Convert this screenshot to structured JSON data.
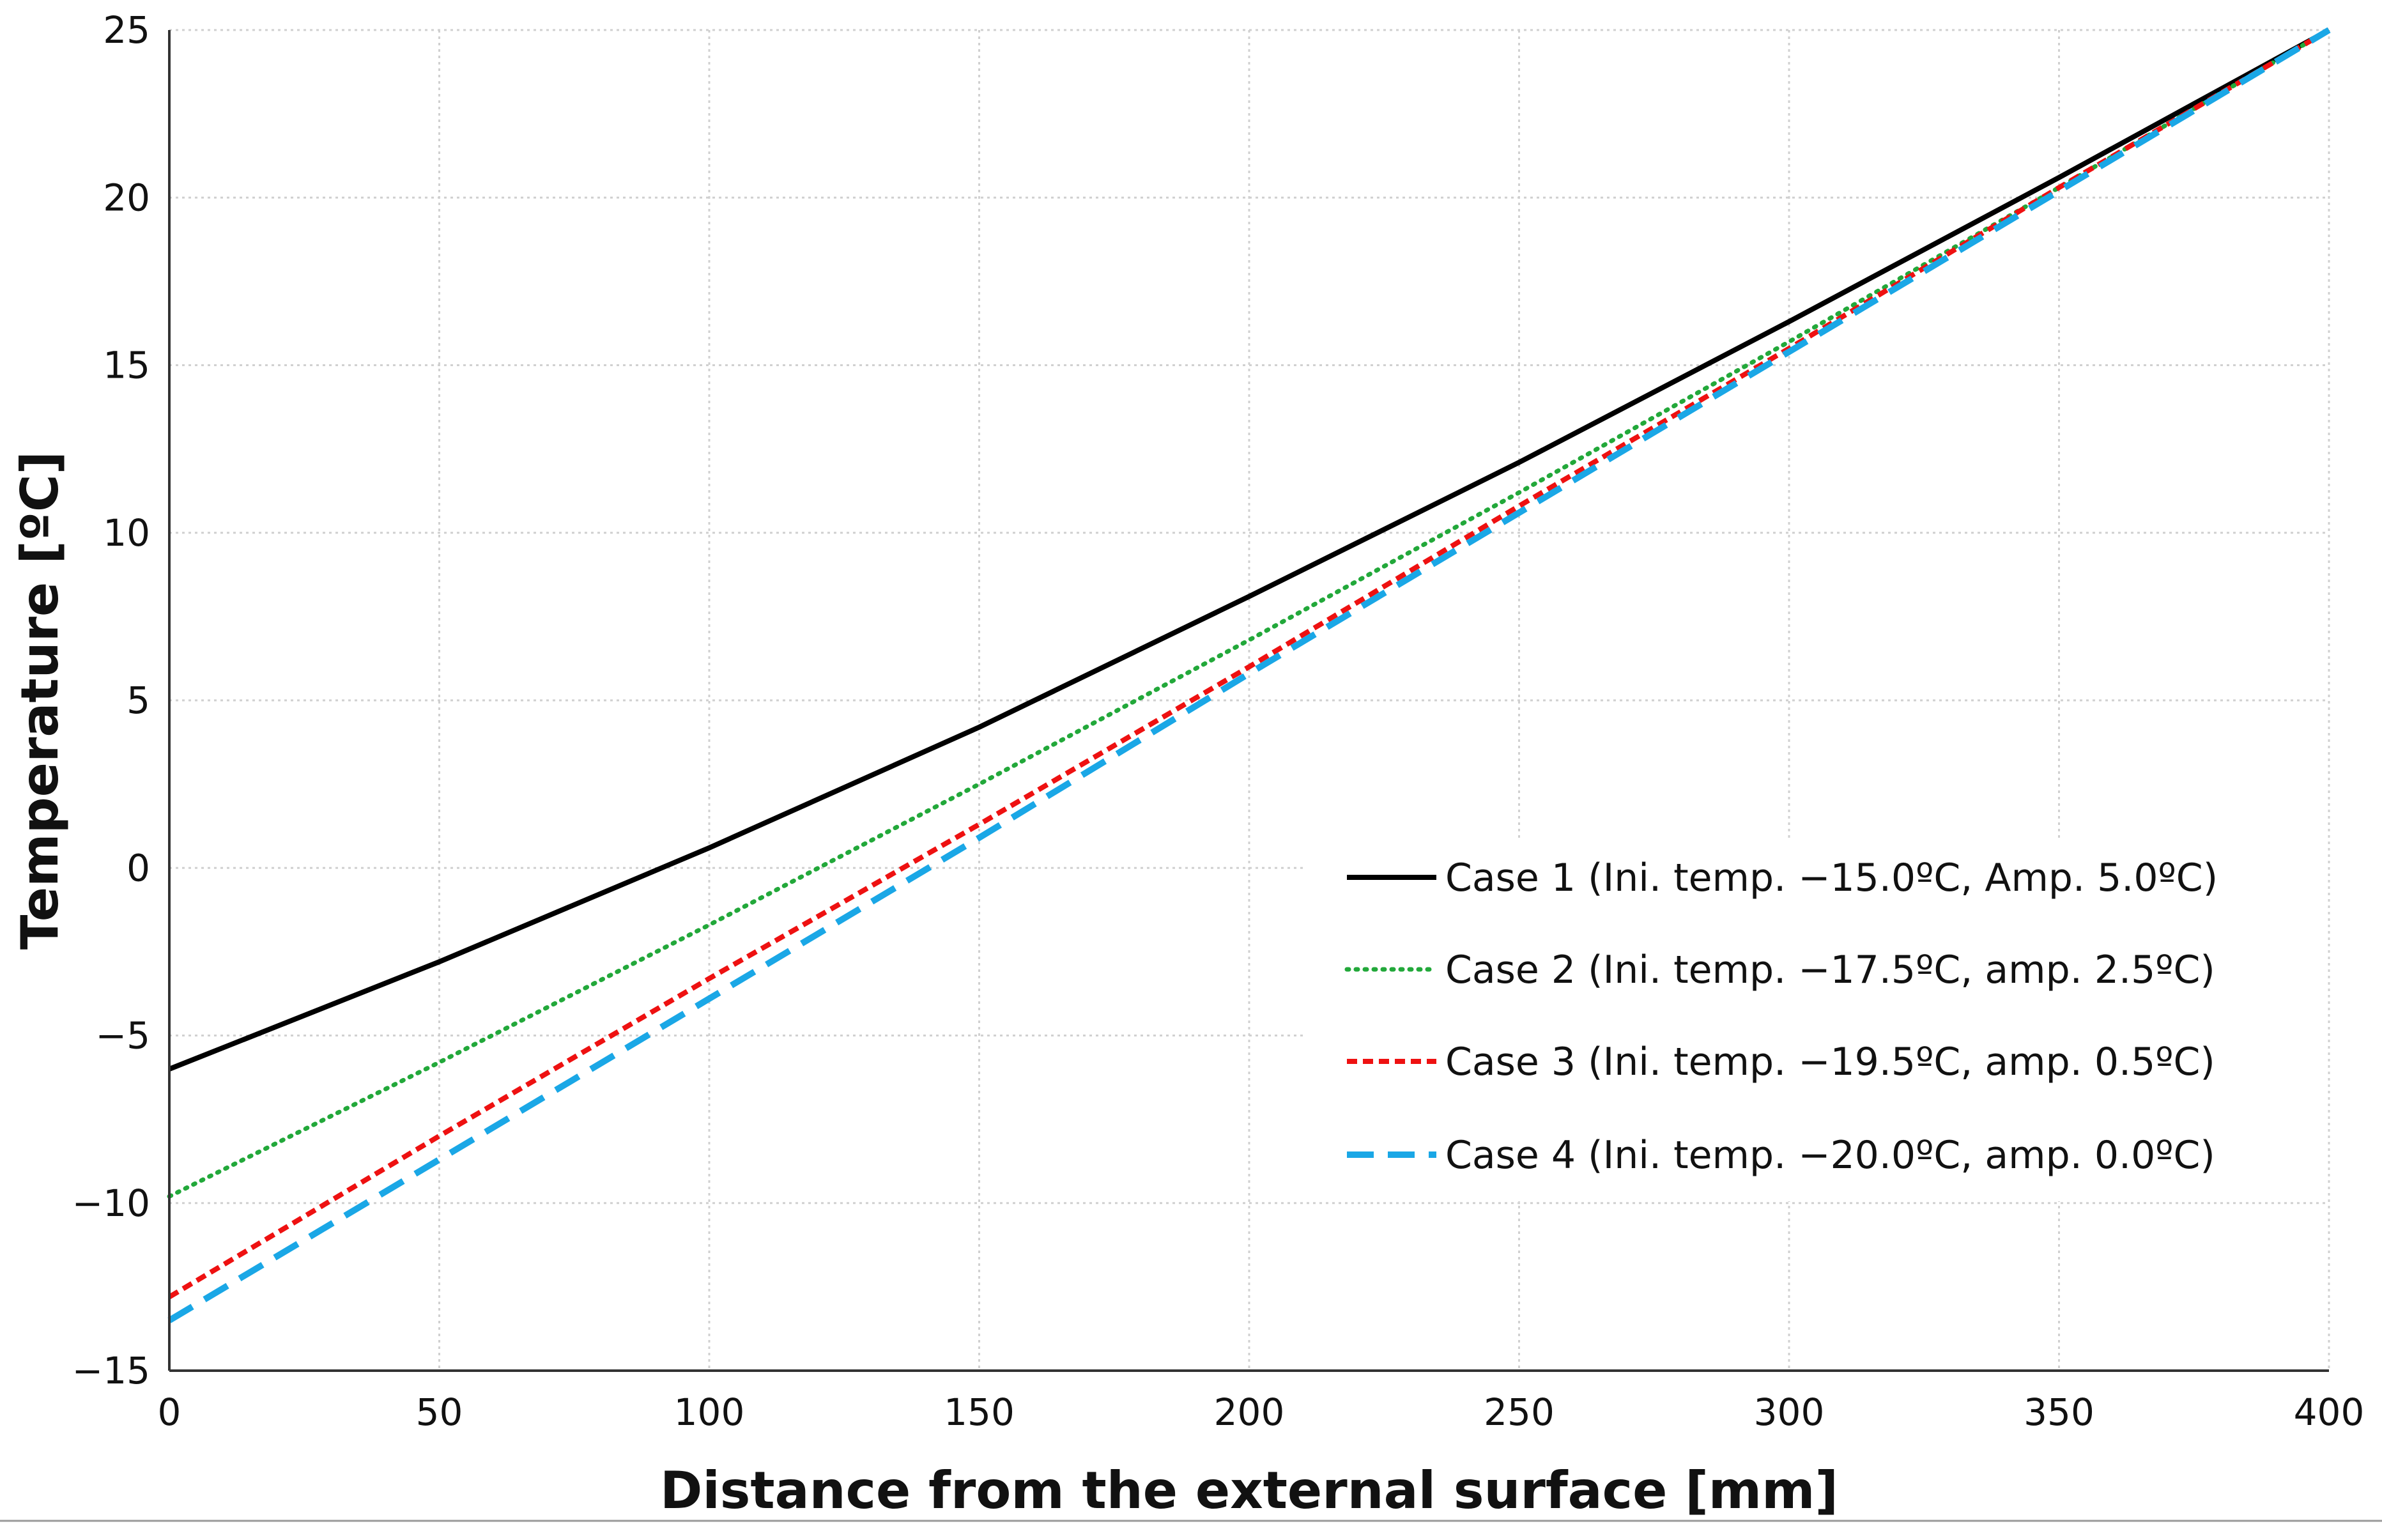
{
  "chart_data": {
    "type": "line",
    "title": "",
    "xlabel": "Distance from the external surface [mm]",
    "ylabel": "Temperature [ºC]",
    "xlim": [
      0,
      400
    ],
    "ylim": [
      -15,
      25
    ],
    "xticks": [
      0,
      50,
      100,
      150,
      200,
      250,
      300,
      350,
      400
    ],
    "yticks": [
      -15,
      -10,
      -5,
      0,
      5,
      10,
      15,
      20,
      25
    ],
    "xtick_labels": [
      "0",
      "50",
      "100",
      "150",
      "200",
      "250",
      "300",
      "350",
      "400"
    ],
    "ytick_labels": [
      "−15",
      "−10",
      "−5",
      "0",
      "5",
      "10",
      "15",
      "20",
      "25"
    ],
    "grid": true,
    "legend_position": "lower-right",
    "series": [
      {
        "name": "Case 1 (Ini. temp. −15.0ºC, Amp. 5.0ºC)",
        "color": "#000000",
        "style": "solid",
        "x": [
          0,
          50,
          100,
          150,
          200,
          250,
          300,
          350,
          400
        ],
        "y": [
          -6.0,
          -2.8,
          0.6,
          4.2,
          8.1,
          12.1,
          16.3,
          20.6,
          25.0
        ]
      },
      {
        "name": "Case 2 (Ini. temp. −17.5ºC, amp. 2.5ºC)",
        "color": "#22a83a",
        "style": "dotted",
        "x": [
          0,
          50,
          100,
          150,
          200,
          250,
          300,
          350,
          400
        ],
        "y": [
          -9.8,
          -5.8,
          -1.7,
          2.5,
          6.8,
          11.2,
          15.7,
          20.3,
          25.0
        ]
      },
      {
        "name": "Case 3 (Ini. temp. −19.5ºC, amp. 0.5ºC)",
        "color": "#ee1111",
        "style": "short-dash",
        "x": [
          0,
          50,
          100,
          150,
          200,
          250,
          300,
          350,
          400
        ],
        "y": [
          -12.8,
          -8.0,
          -3.3,
          1.3,
          6.0,
          10.8,
          15.5,
          20.3,
          25.0
        ]
      },
      {
        "name": "Case 4 (Ini. temp. −20.0ºC, amp. 0.0ºC)",
        "color": "#1aa7e6",
        "style": "long-dash",
        "x": [
          0,
          50,
          100,
          150,
          200,
          250,
          300,
          350,
          400
        ],
        "y": [
          -13.5,
          -8.7,
          -3.9,
          0.9,
          5.8,
          10.6,
          15.4,
          20.2,
          25.0
        ]
      }
    ]
  }
}
